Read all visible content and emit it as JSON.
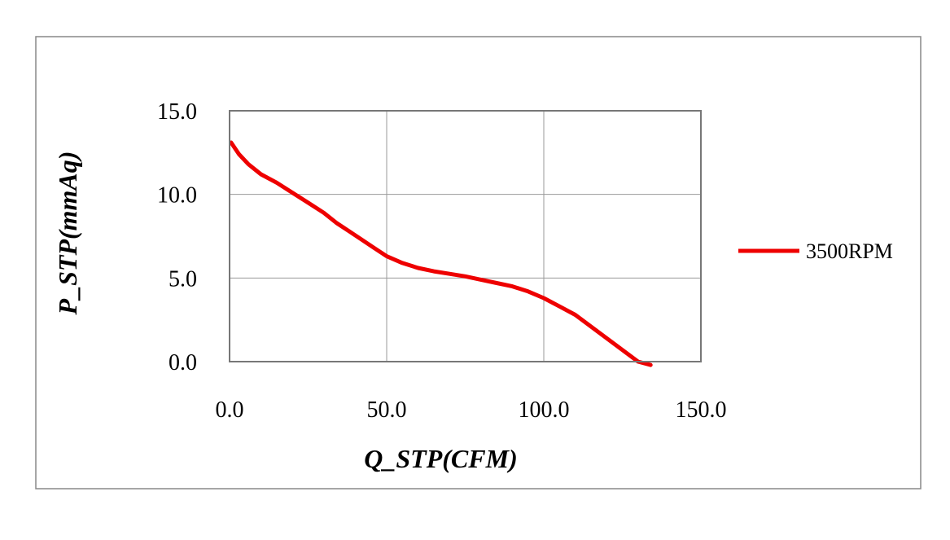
{
  "chart_data": {
    "type": "line",
    "title": "",
    "xlabel": "Q_STP(CFM)",
    "ylabel": "P_STP(mmAq)",
    "xlim": [
      0,
      150
    ],
    "ylim": [
      0,
      15
    ],
    "x_ticks": [
      0,
      50,
      100,
      150
    ],
    "y_ticks": [
      0,
      5,
      10,
      15
    ],
    "x_tick_labels": [
      "0.0",
      "50.0",
      "100.0",
      "150.0"
    ],
    "y_tick_labels": [
      "0.0",
      "5.0",
      "10.0",
      "15.0"
    ],
    "grid": true,
    "legend_position": "right",
    "series": [
      {
        "name": "3500RPM",
        "color": "#ee0000",
        "x": [
          0.5,
          3,
          6,
          10,
          15,
          20,
          25,
          30,
          34,
          38,
          42,
          46,
          50,
          55,
          60,
          65,
          70,
          75,
          80,
          85,
          90,
          95,
          100,
          105,
          110,
          115,
          120,
          125,
          130,
          134
        ],
        "y": [
          13.1,
          12.4,
          11.8,
          11.2,
          10.7,
          10.1,
          9.5,
          8.9,
          8.3,
          7.8,
          7.3,
          6.8,
          6.3,
          5.9,
          5.6,
          5.4,
          5.25,
          5.1,
          4.9,
          4.7,
          4.5,
          4.2,
          3.8,
          3.3,
          2.8,
          2.1,
          1.4,
          0.7,
          0.0,
          -0.2
        ]
      }
    ]
  }
}
